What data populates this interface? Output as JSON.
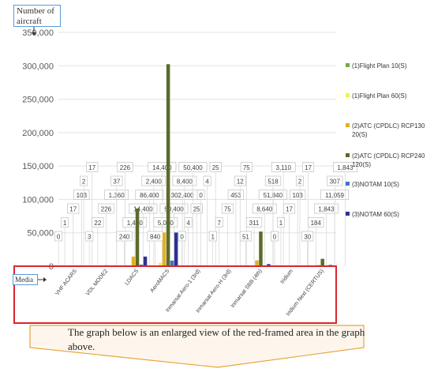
{
  "y_axis_label": "Number of aircraft",
  "x_axis_label": "Media",
  "callout_text": "The graph below is an enlarged view of the red-framed area in the graph above.",
  "colors": {
    "series": [
      "#70ad47",
      "#f2f24a",
      "#e4b020",
      "#5b6b2a",
      "#4472c4",
      "#2e3192"
    ],
    "frame": "#d9262c",
    "box": "#5b9bd5",
    "arrow_fill": "#fef6ec",
    "arrow_stroke": "#e8a33d"
  },
  "chart_data": {
    "type": "bar",
    "ylim": [
      0,
      350000
    ],
    "yticks": [
      0,
      50000,
      100000,
      150000,
      200000,
      250000,
      300000,
      350000
    ],
    "ytick_labels": [
      "0",
      "50,000",
      "100,000",
      "150,000",
      "200,000",
      "250,000",
      "300,000",
      "350,000"
    ],
    "grid": true,
    "legend_position": "right",
    "categories": [
      "VHF ACARS",
      "VDL MODE2",
      "LDACS",
      "AeroMACS",
      "Inmarsat Aero-1 (3rd)",
      "Inmarsat Aero-H (3rd)",
      "Inmarsat SBB (4th)",
      "Iridium",
      "Iridium Next (CERTUS)"
    ],
    "series": [
      {
        "name": "(1)Flight Plan 10(S)",
        "values": [
          0,
          3,
          240,
          840,
          0,
          1,
          51,
          0,
          30
        ]
      },
      {
        "name": "(1)Flight Plan 60(S)",
        "values": [
          1,
          22,
          1440,
          5040,
          4,
          7,
          311,
          1,
          184
        ]
      },
      {
        "name": "(2)ATC (CPDLC) RCP130 20(S)",
        "values": [
          17,
          226,
          14400,
          50400,
          25,
          75,
          8640,
          17,
          1843
        ]
      },
      {
        "name": "(2)ATC (CPDLC) RCP240 120(S)",
        "values": [
          103,
          1360,
          86400,
          302400,
          0,
          453,
          51840,
          103,
          11059
        ]
      },
      {
        "name": "(3)NOTAM 10(S)",
        "values": [
          2,
          37,
          2400,
          8400,
          4,
          12,
          518,
          2,
          307
        ]
      },
      {
        "name": "(3)NOTAM 60(S)",
        "values": [
          17,
          226,
          14400,
          50400,
          25,
          75,
          3110,
          17,
          1843
        ]
      }
    ]
  }
}
